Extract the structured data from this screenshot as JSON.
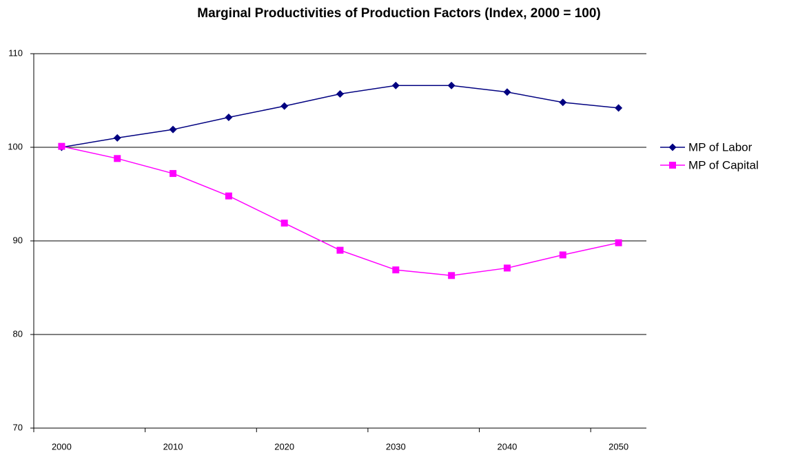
{
  "chart_data": {
    "type": "line",
    "title": "Marginal Productivities of Production Factors (Index, 2000 = 100)",
    "categories": [
      2000,
      null,
      2010,
      null,
      2020,
      null,
      2030,
      null,
      2040,
      null,
      2050
    ],
    "series": [
      {
        "name": "MP of Labor",
        "color": "#000080",
        "marker": "diamond",
        "values": [
          100,
          101.0,
          101.9,
          103.2,
          104.4,
          105.7,
          106.6,
          106.6,
          105.9,
          104.8,
          104.2
        ]
      },
      {
        "name": "MP of Capital",
        "color": "#ff00ff",
        "marker": "square",
        "values": [
          100.1,
          98.8,
          97.2,
          94.8,
          91.9,
          89.0,
          86.9,
          86.3,
          87.1,
          88.5,
          89.8
        ]
      }
    ],
    "ylim": [
      70,
      110
    ],
    "yticks": [
      70,
      80,
      90,
      100,
      110
    ],
    "grid": true,
    "legend": "right"
  }
}
